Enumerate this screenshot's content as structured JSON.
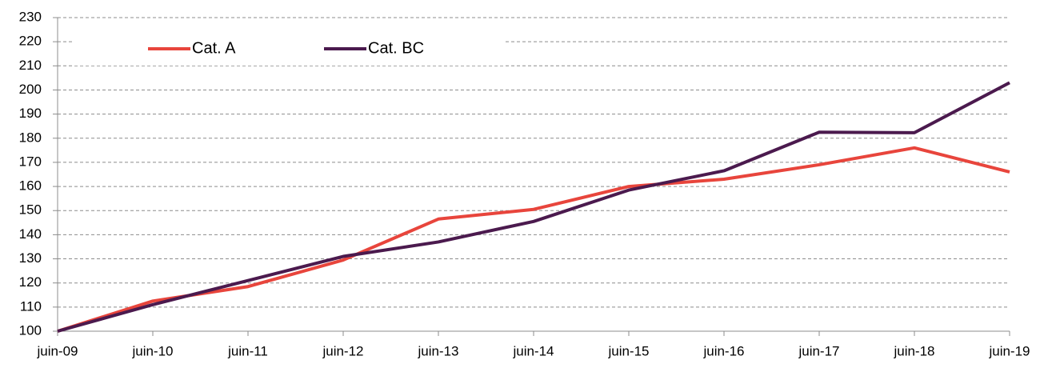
{
  "chart_data": {
    "type": "line",
    "categories": [
      "juin-09",
      "juin-10",
      "juin-11",
      "juin-12",
      "juin-13",
      "juin-14",
      "juin-15",
      "juin-16",
      "juin-17",
      "juin-18",
      "juin-19"
    ],
    "series": [
      {
        "name": "Cat. A",
        "color": "#e8453c",
        "values": [
          100,
          112.5,
          118.5,
          129.5,
          146.5,
          150.5,
          160,
          163,
          169,
          176,
          166
        ]
      },
      {
        "name": "Cat. BC",
        "color": "#4b1a4e",
        "values": [
          100,
          111,
          121,
          131,
          137,
          145.5,
          158.5,
          166.5,
          182.5,
          182.3,
          203
        ]
      }
    ],
    "ylim": [
      100,
      230
    ],
    "yticks": [
      100,
      110,
      120,
      130,
      140,
      150,
      160,
      170,
      180,
      190,
      200,
      210,
      220,
      230
    ],
    "grid": true,
    "legend": "top-left"
  }
}
